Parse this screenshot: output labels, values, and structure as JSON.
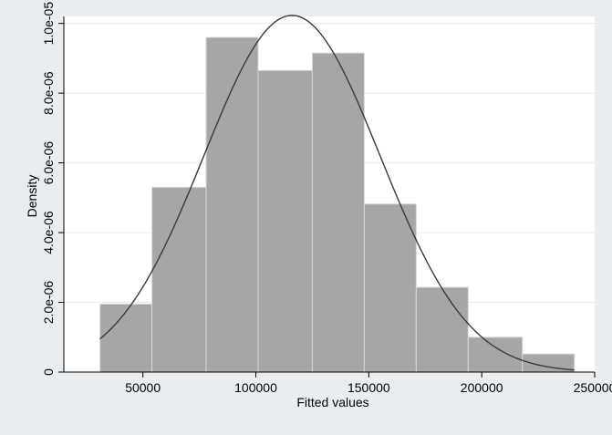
{
  "chart_data": {
    "type": "histogram",
    "xlabel": "Fitted values",
    "ylabel": "Density",
    "xlim": [
      15000,
      250000
    ],
    "ylim": [
      0,
      1.02e-05
    ],
    "x_ticks": [
      {
        "value": 50000,
        "label": "50000"
      },
      {
        "value": 100000,
        "label": "100000"
      },
      {
        "value": 150000,
        "label": "150000"
      },
      {
        "value": 200000,
        "label": "200000"
      },
      {
        "value": 250000,
        "label": "250000"
      }
    ],
    "y_ticks": [
      {
        "value": 0,
        "label": "0"
      },
      {
        "value": 2e-06,
        "label": "2.0e-06"
      },
      {
        "value": 4e-06,
        "label": "4.0e-06"
      },
      {
        "value": 6e-06,
        "label": "6.0e-06"
      },
      {
        "value": 8e-06,
        "label": "8.0e-06"
      },
      {
        "value": 1e-05,
        "label": "1.0e-05"
      }
    ],
    "bins": [
      {
        "x0": 31000,
        "x1": 54000,
        "density": 1.95e-06
      },
      {
        "x0": 54000,
        "x1": 78000,
        "density": 5.3e-06
      },
      {
        "x0": 78000,
        "x1": 101000,
        "density": 9.6e-06
      },
      {
        "x0": 101000,
        "x1": 125000,
        "density": 8.65e-06
      },
      {
        "x0": 125000,
        "x1": 148000,
        "density": 9.15e-06
      },
      {
        "x0": 148000,
        "x1": 171000,
        "density": 4.82e-06
      },
      {
        "x0": 171000,
        "x1": 194000,
        "density": 2.43e-06
      },
      {
        "x0": 194000,
        "x1": 218000,
        "density": 1e-06
      },
      {
        "x0": 218000,
        "x1": 241000,
        "density": 5.2e-07
      }
    ],
    "normal_curve": {
      "mean": 116000,
      "sd": 39000,
      "x_range": [
        31000,
        241000
      ]
    },
    "grid": true,
    "colors": {
      "bars": "#a6a6a6",
      "bar_edge": "#d9d9d9",
      "curve": "#3a3a3a",
      "plot_bg": "#ffffff",
      "outer_bg": "#e9edf0",
      "grid": "#e6eaec"
    }
  }
}
